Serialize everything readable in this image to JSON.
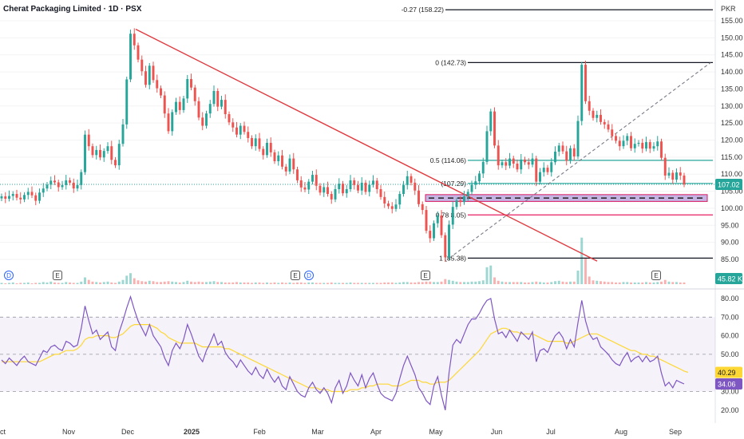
{
  "header": {
    "title": "Cherat Packaging Limited · 1D · PSX"
  },
  "price_axis": {
    "currency": "PKR",
    "ticks": [
      "155.00",
      "150.00",
      "145.00",
      "140.00",
      "135.00",
      "130.00",
      "125.00",
      "120.00",
      "115.00",
      "110.00",
      "105.00",
      "100.00",
      "95.00",
      "90.00",
      "85.00"
    ]
  },
  "rsi_axis": {
    "ticks": [
      "80.00",
      "70.00",
      "60.00",
      "50.00",
      "40.00",
      "30.00",
      "20.00"
    ]
  },
  "time_axis": {
    "labels": [
      "ct",
      "Nov",
      "Dec",
      "2025",
      "Feb",
      "Mar",
      "Apr",
      "May",
      "Jun",
      "Jul",
      "Aug",
      "Sep"
    ]
  },
  "badges": {
    "last_price": "107.02",
    "volume": "45.82 K",
    "rsi_ma": "40.29",
    "rsi": "34.06"
  },
  "colors": {
    "up": "#26a69a",
    "down": "#ef5350",
    "trendline": "#e03a3e",
    "fib": "#26a69a",
    "zone": "#9575cd",
    "rsi": "#7e57c2",
    "rsi_ma": "#fdd835"
  },
  "events": [
    {
      "type": "dividend",
      "label": "D"
    },
    {
      "type": "earnings",
      "label": "E"
    },
    {
      "type": "earnings",
      "label": "E"
    },
    {
      "type": "dividend",
      "label": "D"
    },
    {
      "type": "earnings",
      "label": "E"
    },
    {
      "type": "earnings",
      "label": "E"
    }
  ],
  "fib_levels": [
    {
      "ratio": "-0.27",
      "price": 158.22,
      "label": "-0.27 (158.22)"
    },
    {
      "ratio": "0",
      "price": 142.73,
      "label": "0 (142.73)"
    },
    {
      "ratio": "0.5",
      "price": 114.06,
      "label": "0.5 (114.06)"
    },
    {
      "ratio": "0.618",
      "price": 107.29,
      "label": "(107.29)"
    },
    {
      "ratio": "0.786",
      "price": 98.05,
      "label": "0.78 8.05)"
    },
    {
      "ratio": "1",
      "price": 85.38,
      "label": "1 (85.38)"
    }
  ],
  "chart_data": {
    "type": "candlestick",
    "title": "Cherat Packaging Limited · 1D · PSX",
    "currency": "PKR",
    "ylim": [
      83,
      158.22
    ],
    "rsi_ylim": [
      17,
      82
    ],
    "rsi_bands": [
      30,
      50,
      70
    ],
    "last_price": 107.02,
    "support_zone": [
      102,
      104
    ],
    "trendline": {
      "from": {
        "date": "Dec 2024",
        "price": 152.5
      },
      "to": {
        "date": "mid Jul 2025",
        "price": 84.5
      }
    },
    "closes": [
      103.5,
      102.8,
      103.6,
      104.2,
      103.1,
      102.6,
      103.9,
      104.8,
      103.8,
      102.2,
      104.6,
      105.8,
      106.9,
      108.1,
      107.6,
      106.2,
      106.8,
      108.2,
      107.5,
      105.8,
      106.8,
      110.6,
      121.6,
      118.2,
      115.6,
      117.1,
      114.9,
      116.8,
      118.2,
      114.2,
      112.6,
      118.9,
      124.6,
      137.8,
      151.2,
      147.8,
      143.6,
      140.2,
      136.2,
      141.8,
      137.6,
      135.2,
      133.1,
      127.8,
      122.6,
      128.2,
      131.2,
      128.8,
      132.2,
      137.9,
      135.4,
      131.4,
      126.6,
      124.2,
      127.8,
      130.6,
      134.4,
      129.8,
      131.8,
      127.6,
      125.2,
      123.7,
      121.6,
      124.2,
      122.4,
      120.6,
      118.2,
      120.5,
      117.4,
      115.6,
      119.2,
      116.4,
      113.8,
      115.5,
      112.2,
      110.8,
      114.6,
      111.4,
      108.2,
      106.1,
      105.5,
      107.8,
      109.8,
      106.6,
      104.6,
      106.2,
      104.2,
      102.6,
      105.6,
      107.2,
      104.4,
      105.6,
      108.2,
      106.8,
      105.2,
      107.5,
      104.8,
      106.9,
      108.1,
      105.6,
      103.3,
      101.4,
      100.6,
      99.8,
      101.1,
      104.2,
      106.8,
      109.4,
      107.5,
      105.2,
      101.2,
      99.5,
      93.4,
      91.2,
      95.6,
      97.9,
      92.1,
      85.6,
      95.2,
      100.4,
      102.3,
      101.8,
      103.5,
      104.8,
      106.9,
      107.9,
      110.2,
      113.6,
      122.6,
      128.4,
      118.4,
      112.6,
      113.5,
      112.5,
      114.6,
      113.1,
      111.4,
      114.3,
      113.5,
      112.8,
      114.6,
      107.8,
      110.6,
      111.9,
      110.6,
      113.5,
      116.6,
      118.4,
      116.7,
      113.9,
      117.6,
      115.2,
      125.6,
      142.1,
      131.4,
      128.6,
      126.5,
      127.4,
      125.3,
      124.6,
      123.1,
      121.2,
      119.8,
      118.2,
      119.8,
      121.2,
      117.6,
      118.9,
      119.2,
      117.5,
      119.4,
      117.5,
      118.2,
      119.6,
      114.8,
      109.6,
      110.4,
      108.4,
      110.5,
      109.6,
      107.0
    ],
    "rsi": [
      47,
      45,
      48,
      46,
      44,
      47,
      49,
      46,
      45,
      44,
      48,
      52,
      51,
      54,
      55,
      53,
      52,
      57,
      56,
      54,
      55,
      64,
      76,
      68,
      61,
      63,
      58,
      60,
      62,
      54,
      52,
      62,
      68,
      75,
      81,
      74,
      68,
      64,
      60,
      66,
      60,
      57,
      54,
      48,
      44,
      52,
      56,
      53,
      58,
      66,
      61,
      55,
      49,
      46,
      52,
      56,
      61,
      55,
      57,
      51,
      48,
      46,
      43,
      47,
      44,
      41,
      39,
      43,
      39,
      37,
      42,
      38,
      35,
      38,
      33,
      31,
      38,
      34,
      30,
      28,
      27,
      32,
      35,
      31,
      29,
      32,
      29,
      24,
      32,
      36,
      29,
      33,
      40,
      36,
      33,
      39,
      32,
      37,
      40,
      34,
      29,
      27,
      26,
      25,
      29,
      37,
      44,
      49,
      44,
      39,
      32,
      29,
      25,
      23,
      33,
      38,
      28,
      20,
      40,
      55,
      58,
      56,
      61,
      66,
      69,
      69,
      72,
      76,
      79,
      80,
      69,
      61,
      62,
      59,
      63,
      60,
      57,
      62,
      60,
      58,
      62,
      46,
      52,
      53,
      51,
      56,
      60,
      62,
      59,
      53,
      58,
      54,
      67,
      79,
      68,
      61,
      58,
      59,
      54,
      52,
      50,
      47,
      45,
      44,
      48,
      51,
      46,
      48,
      49,
      46,
      49,
      46,
      47,
      49,
      40,
      33,
      35,
      32,
      36,
      35,
      34.06
    ],
    "rsi_ma": [
      46,
      46,
      46,
      46,
      46,
      46,
      46,
      46,
      46,
      46,
      46,
      47,
      48,
      49,
      50,
      50,
      51,
      52,
      52,
      52,
      53,
      55,
      58,
      59,
      59,
      60,
      60,
      60,
      60,
      59,
      59,
      60,
      61,
      63,
      65,
      66,
      66,
      66,
      66,
      66,
      65,
      64,
      62,
      61,
      59,
      58,
      57,
      56,
      56,
      56,
      56,
      56,
      55,
      54,
      54,
      54,
      54,
      54,
      54,
      53,
      53,
      52,
      51,
      50,
      49,
      48,
      47,
      46,
      45,
      44,
      43,
      42,
      41,
      40,
      39,
      38,
      37,
      36,
      35,
      34,
      33,
      32,
      32,
      32,
      31,
      31,
      31,
      30,
      30,
      30,
      30,
      30,
      31,
      31,
      31,
      32,
      32,
      33,
      33,
      34,
      34,
      34,
      34,
      33,
      33,
      33,
      34,
      35,
      36,
      36,
      36,
      35,
      35,
      34,
      34,
      35,
      35,
      35,
      36,
      38,
      40,
      42,
      44,
      46,
      48,
      50,
      52,
      55,
      58,
      61,
      62,
      63,
      64,
      64,
      63,
      62,
      62,
      61,
      61,
      61,
      61,
      60,
      59,
      58,
      57,
      57,
      57,
      57,
      57,
      56,
      56,
      57,
      58,
      59,
      60,
      61,
      61,
      61,
      60,
      59,
      58,
      57,
      56,
      55,
      54,
      53,
      52,
      52,
      51,
      50,
      50,
      49,
      49,
      48,
      47,
      46,
      45,
      44,
      43,
      42,
      41,
      40.29
    ],
    "volume": [
      0.3,
      0.2,
      0.3,
      0.4,
      0.2,
      0.3,
      0.3,
      0.4,
      0.2,
      0.3,
      0.3,
      0.5,
      0.4,
      0.6,
      0.4,
      0.3,
      0.3,
      0.5,
      0.4,
      0.3,
      0.3,
      0.6,
      1.6,
      1.0,
      0.6,
      0.5,
      0.4,
      0.5,
      0.6,
      0.4,
      0.3,
      0.6,
      1.0,
      2.0,
      2.6,
      1.4,
      0.9,
      0.7,
      0.6,
      0.8,
      0.7,
      0.5,
      0.5,
      0.6,
      0.7,
      0.6,
      0.5,
      0.4,
      0.5,
      0.8,
      0.6,
      0.5,
      0.6,
      0.5,
      0.5,
      0.6,
      0.7,
      0.5,
      0.5,
      0.4,
      0.4,
      0.4,
      0.5,
      0.4,
      0.4,
      0.4,
      0.3,
      0.4,
      0.4,
      0.3,
      0.4,
      0.3,
      0.4,
      0.3,
      0.4,
      0.3,
      0.4,
      0.3,
      0.4,
      0.4,
      0.3,
      0.4,
      0.4,
      0.3,
      0.3,
      0.3,
      0.3,
      0.4,
      0.3,
      0.3,
      0.3,
      0.3,
      0.4,
      0.3,
      0.3,
      0.3,
      0.3,
      0.3,
      0.3,
      0.3,
      0.3,
      0.4,
      0.4,
      0.4,
      0.3,
      0.4,
      0.5,
      0.5,
      0.4,
      0.4,
      0.5,
      0.5,
      0.6,
      0.6,
      0.5,
      0.5,
      0.6,
      1.2,
      1.0,
      0.8,
      0.6,
      0.5,
      0.5,
      0.5,
      0.6,
      0.6,
      0.7,
      0.9,
      4.0,
      4.4,
      1.6,
      0.8,
      0.6,
      0.5,
      0.5,
      0.5,
      0.5,
      0.5,
      0.4,
      0.4,
      0.5,
      0.6,
      0.5,
      0.4,
      0.4,
      0.5,
      0.7,
      0.8,
      0.6,
      0.5,
      0.6,
      0.6,
      3.2,
      11.0,
      6.2,
      1.8,
      0.9,
      0.8,
      0.7,
      0.6,
      0.5,
      0.5,
      0.4,
      0.4,
      0.5,
      0.5,
      0.4,
      0.4,
      0.4,
      0.4,
      0.5,
      0.4,
      0.4,
      0.5,
      0.6,
      1.0,
      0.6,
      0.5,
      0.5,
      0.4,
      0.4
    ]
  }
}
